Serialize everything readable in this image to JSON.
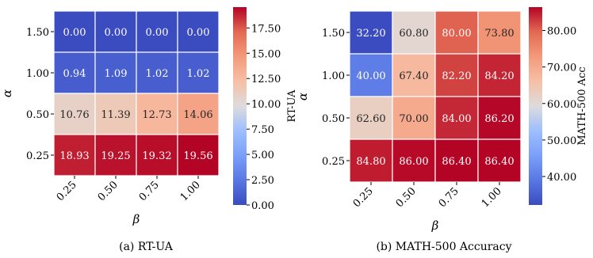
{
  "chart_data": [
    {
      "type": "heatmap",
      "caption": "(a) RT-UA",
      "xlabel": "β",
      "ylabel": "α",
      "x_categories": [
        "0.25",
        "0.50",
        "0.75",
        "1.00"
      ],
      "y_categories": [
        "1.50",
        "1.00",
        "0.50",
        "0.25"
      ],
      "values": [
        [
          0.0,
          0.0,
          0.0,
          0.0
        ],
        [
          0.94,
          1.09,
          1.02,
          1.02
        ],
        [
          10.76,
          11.39,
          12.73,
          14.06
        ],
        [
          18.93,
          19.25,
          19.32,
          19.56
        ]
      ],
      "cell_labels": [
        [
          "0.00",
          "0.00",
          "0.00",
          "0.00"
        ],
        [
          "0.94",
          "1.09",
          "1.02",
          "1.02"
        ],
        [
          "10.76",
          "11.39",
          "12.73",
          "14.06"
        ],
        [
          "18.93",
          "19.25",
          "19.32",
          "19.56"
        ]
      ],
      "colorbar": {
        "label": "RT-UA",
        "vmin": 0.0,
        "vmax": 19.56,
        "ticks": [
          0.0,
          2.5,
          5.0,
          7.5,
          10.0,
          12.5,
          15.0,
          17.5
        ],
        "tick_labels": [
          "0.00",
          "2.50",
          "5.00",
          "7.50",
          "10.00",
          "12.50",
          "15.00",
          "17.50"
        ]
      },
      "colormap": "coolwarm"
    },
    {
      "type": "heatmap",
      "caption": "(b) MATH-500 Accuracy",
      "xlabel": "β",
      "ylabel": "α",
      "x_categories": [
        "0.25",
        "0.50",
        "0.75",
        "1.00"
      ],
      "y_categories": [
        "1.50",
        "1.00",
        "0.50",
        "0.25"
      ],
      "values": [
        [
          32.2,
          60.8,
          80.0,
          73.8
        ],
        [
          40.0,
          67.4,
          82.2,
          84.2
        ],
        [
          62.6,
          70.0,
          84.0,
          86.2
        ],
        [
          84.8,
          86.0,
          86.4,
          86.4
        ]
      ],
      "cell_labels": [
        [
          "32.20",
          "60.80",
          "80.00",
          "73.80"
        ],
        [
          "40.00",
          "67.40",
          "82.20",
          "84.20"
        ],
        [
          "62.60",
          "70.00",
          "84.00",
          "86.20"
        ],
        [
          "84.80",
          "86.00",
          "86.40",
          "86.40"
        ]
      ],
      "colorbar": {
        "label": "MATH-500 Acc",
        "vmin": 32.2,
        "vmax": 86.4,
        "ticks": [
          40.0,
          50.0,
          60.0,
          70.0,
          80.0
        ],
        "tick_labels": [
          "40.00",
          "50.00",
          "60.00",
          "70.00",
          "80.00"
        ]
      },
      "colormap": "coolwarm"
    }
  ]
}
